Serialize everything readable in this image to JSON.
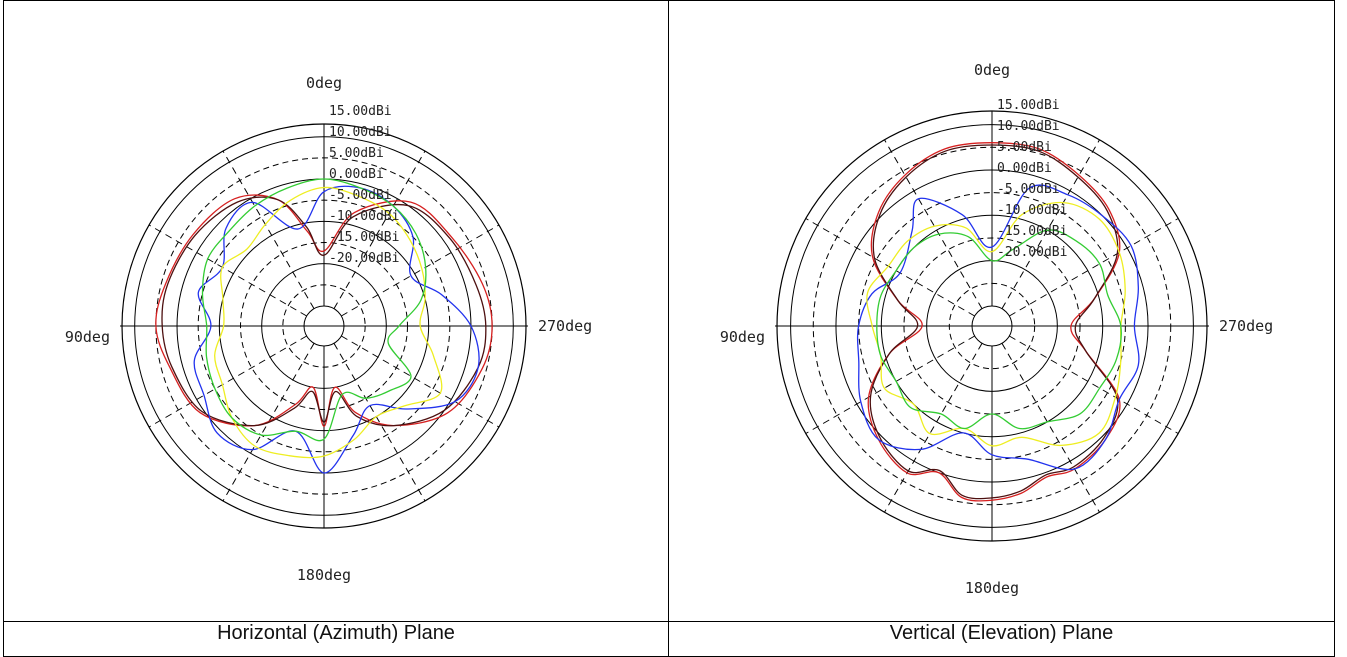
{
  "chart_data": [
    {
      "type": "polar-line",
      "caption": "Horizontal (Azimuth) Plane",
      "direction_labels": {
        "top": "0deg",
        "left": "90deg",
        "right": "270deg",
        "bottom": "180deg"
      },
      "ring_labels": [
        "15.00dBi",
        "10.00dBi",
        "5.00dBi",
        "0.00dBi",
        "-5.00dBi",
        "-10.00dBi",
        "-15.00dBi",
        "-20.00dBi"
      ],
      "r_range": [
        -25,
        18
      ],
      "angular_grid_deg": 30,
      "series": [
        {
          "color": "#d62020",
          "points": [
            [
              0,
              -12
            ],
            [
              10,
              -7
            ],
            [
              20,
              2
            ],
            [
              35,
              7
            ],
            [
              55,
              8
            ],
            [
              75,
              9
            ],
            [
              90,
              10
            ],
            [
              105,
              8
            ],
            [
              125,
              6
            ],
            [
              145,
              -1
            ],
            [
              160,
              -10
            ],
            [
              170,
              -15
            ],
            [
              180,
              -6
            ],
            [
              190,
              -15
            ],
            [
              200,
              -8
            ],
            [
              215,
              -1
            ],
            [
              235,
              6
            ],
            [
              255,
              9
            ],
            [
              270,
              10
            ],
            [
              285,
              9
            ],
            [
              305,
              7
            ],
            [
              325,
              6
            ],
            [
              345,
              -2
            ]
          ]
        },
        {
          "color": "#4d1010",
          "points": [
            [
              0,
              -13
            ],
            [
              10,
              -6
            ],
            [
              20,
              2
            ],
            [
              35,
              6
            ],
            [
              55,
              7.5
            ],
            [
              75,
              8.5
            ],
            [
              90,
              8.5
            ],
            [
              105,
              7.5
            ],
            [
              125,
              5.5
            ],
            [
              145,
              -1
            ],
            [
              160,
              -9
            ],
            [
              170,
              -14
            ],
            [
              180,
              -7
            ],
            [
              190,
              -14
            ],
            [
              200,
              -7
            ],
            [
              215,
              -1
            ],
            [
              235,
              5
            ],
            [
              255,
              8
            ],
            [
              270,
              8.5
            ],
            [
              285,
              7.5
            ],
            [
              305,
              6.5
            ],
            [
              325,
              5
            ],
            [
              345,
              -3
            ]
          ]
        },
        {
          "color": "#2233ee",
          "points": [
            [
              0,
              2
            ],
            [
              15,
              -6
            ],
            [
              30,
              4
            ],
            [
              45,
              3
            ],
            [
              60,
              -2
            ],
            [
              75,
              1
            ],
            [
              90,
              -3
            ],
            [
              105,
              2
            ],
            [
              120,
              3
            ],
            [
              135,
              6
            ],
            [
              150,
              4
            ],
            [
              165,
              -4
            ],
            [
              180,
              5
            ],
            [
              195,
              -3
            ],
            [
              210,
              -8
            ],
            [
              225,
              -2
            ],
            [
              240,
              6
            ],
            [
              255,
              8
            ],
            [
              270,
              5
            ],
            [
              285,
              -1
            ],
            [
              300,
              -6
            ],
            [
              315,
              0
            ],
            [
              330,
              3
            ],
            [
              345,
              4
            ]
          ]
        },
        {
          "color": "#eeee22",
          "points": [
            [
              0,
              3
            ],
            [
              15,
              1
            ],
            [
              30,
              -2
            ],
            [
              45,
              -4
            ],
            [
              60,
              -2
            ],
            [
              75,
              -5
            ],
            [
              90,
              -6
            ],
            [
              105,
              -3
            ],
            [
              120,
              -2
            ],
            [
              135,
              1
            ],
            [
              150,
              3
            ],
            [
              165,
              2
            ],
            [
              180,
              1
            ],
            [
              195,
              -2
            ],
            [
              210,
              -5
            ],
            [
              225,
              -3
            ],
            [
              240,
              2
            ],
            [
              255,
              -3
            ],
            [
              270,
              -7
            ],
            [
              285,
              -5
            ],
            [
              300,
              -3
            ],
            [
              315,
              -1
            ],
            [
              330,
              1
            ],
            [
              345,
              2
            ]
          ]
        },
        {
          "color": "#33cc33",
          "points": [
            [
              0,
              5
            ],
            [
              15,
              4
            ],
            [
              30,
              3
            ],
            [
              45,
              2
            ],
            [
              60,
              2
            ],
            [
              75,
              0
            ],
            [
              90,
              -2
            ],
            [
              105,
              -1
            ],
            [
              120,
              0
            ],
            [
              135,
              1
            ],
            [
              150,
              0
            ],
            [
              165,
              -4
            ],
            [
              180,
              -3
            ],
            [
              195,
              -13
            ],
            [
              210,
              -10
            ],
            [
              225,
              -8
            ],
            [
              240,
              -6
            ],
            [
              255,
              -14
            ],
            [
              270,
              -12
            ],
            [
              285,
              -6
            ],
            [
              300,
              -2
            ],
            [
              315,
              1
            ],
            [
              330,
              3
            ],
            [
              345,
              4
            ]
          ]
        }
      ]
    },
    {
      "type": "polar-line",
      "caption": "Vertical (Elevation) Plane",
      "direction_labels": {
        "top": "0deg",
        "left": "90deg",
        "right": "270deg",
        "bottom": "180deg"
      },
      "ring_labels": [
        "15.00dBi",
        "10.00dBi",
        "5.00dBi",
        "0.00dBi",
        "-5.00dBi",
        "-10.00dBi",
        "-15.00dBi",
        "-20.00dBi"
      ],
      "r_range": [
        -25,
        18
      ],
      "angular_grid_deg": 30,
      "series": [
        {
          "color": "#d62020",
          "points": [
            [
              0,
              11
            ],
            [
              15,
              11
            ],
            [
              30,
              9
            ],
            [
              45,
              6
            ],
            [
              60,
              1
            ],
            [
              75,
              -8
            ],
            [
              90,
              -14
            ],
            [
              105,
              -6
            ],
            [
              120,
              2
            ],
            [
              135,
              6
            ],
            [
              150,
              8
            ],
            [
              160,
              5
            ],
            [
              170,
              9
            ],
            [
              180,
              9
            ],
            [
              190,
              8
            ],
            [
              200,
              6
            ],
            [
              210,
              7
            ],
            [
              225,
              6
            ],
            [
              240,
              3
            ],
            [
              255,
              -8
            ],
            [
              270,
              -12
            ],
            [
              285,
              -6
            ],
            [
              300,
              3
            ],
            [
              315,
              7
            ],
            [
              330,
              9
            ],
            [
              345,
              11
            ]
          ]
        },
        {
          "color": "#4d1010",
          "points": [
            [
              0,
              10.5
            ],
            [
              15,
              10.5
            ],
            [
              30,
              8.5
            ],
            [
              45,
              5.5
            ],
            [
              60,
              0.5
            ],
            [
              75,
              -8
            ],
            [
              90,
              -13
            ],
            [
              105,
              -6
            ],
            [
              120,
              1.5
            ],
            [
              135,
              5.5
            ],
            [
              150,
              7.5
            ],
            [
              160,
              4.5
            ],
            [
              170,
              8.5
            ],
            [
              180,
              8.5
            ],
            [
              190,
              7.5
            ],
            [
              200,
              5.5
            ],
            [
              210,
              6.5
            ],
            [
              225,
              5.5
            ],
            [
              240,
              2.5
            ],
            [
              255,
              -8
            ],
            [
              270,
              -11
            ],
            [
              285,
              -6
            ],
            [
              300,
              2.5
            ],
            [
              315,
              6.5
            ],
            [
              330,
              8.5
            ],
            [
              345,
              10.5
            ]
          ]
        },
        {
          "color": "#2233ee",
          "points": [
            [
              0,
              -12
            ],
            [
              15,
              -4
            ],
            [
              30,
              3
            ],
            [
              40,
              -2
            ],
            [
              60,
              -6
            ],
            [
              75,
              -2
            ],
            [
              90,
              0
            ],
            [
              105,
              1
            ],
            [
              120,
              4
            ],
            [
              135,
              6
            ],
            [
              150,
              2
            ],
            [
              165,
              -5
            ],
            [
              180,
              -1
            ],
            [
              195,
              1
            ],
            [
              210,
              7
            ],
            [
              225,
              6
            ],
            [
              240,
              3
            ],
            [
              255,
              4
            ],
            [
              270,
              2
            ],
            [
              285,
              4
            ],
            [
              300,
              6
            ],
            [
              315,
              5
            ],
            [
              330,
              4
            ],
            [
              345,
              2
            ]
          ]
        },
        {
          "color": "#eeee22",
          "points": [
            [
              0,
              -13
            ],
            [
              15,
              -7
            ],
            [
              30,
              -4
            ],
            [
              45,
              -3
            ],
            [
              60,
              -3
            ],
            [
              75,
              -1
            ],
            [
              90,
              -3
            ],
            [
              105,
              -4
            ],
            [
              120,
              -2
            ],
            [
              135,
              -5
            ],
            [
              150,
              -2
            ],
            [
              165,
              -6
            ],
            [
              180,
              -3
            ],
            [
              195,
              -4
            ],
            [
              210,
              1
            ],
            [
              225,
              4
            ],
            [
              240,
              2
            ],
            [
              255,
              0
            ],
            [
              270,
              -1
            ],
            [
              285,
              1
            ],
            [
              300,
              3
            ],
            [
              315,
              4
            ],
            [
              330,
              2
            ],
            [
              345,
              -4
            ]
          ]
        },
        {
          "color": "#33cc33",
          "points": [
            [
              0,
              -15
            ],
            [
              15,
              -9
            ],
            [
              30,
              -6
            ],
            [
              45,
              -5
            ],
            [
              60,
              -5
            ],
            [
              75,
              -4
            ],
            [
              90,
              -4
            ],
            [
              105,
              -4
            ],
            [
              120,
              -5
            ],
            [
              135,
              -4
            ],
            [
              150,
              -7
            ],
            [
              165,
              -6
            ],
            [
              180,
              -10
            ],
            [
              195,
              -6
            ],
            [
              210,
              -5
            ],
            [
              225,
              -2
            ],
            [
              240,
              -2
            ],
            [
              255,
              -1
            ],
            [
              270,
              -1
            ],
            [
              285,
              -3
            ],
            [
              300,
              -2
            ],
            [
              315,
              -3
            ],
            [
              330,
              -5
            ],
            [
              345,
              -12
            ]
          ]
        }
      ]
    }
  ]
}
